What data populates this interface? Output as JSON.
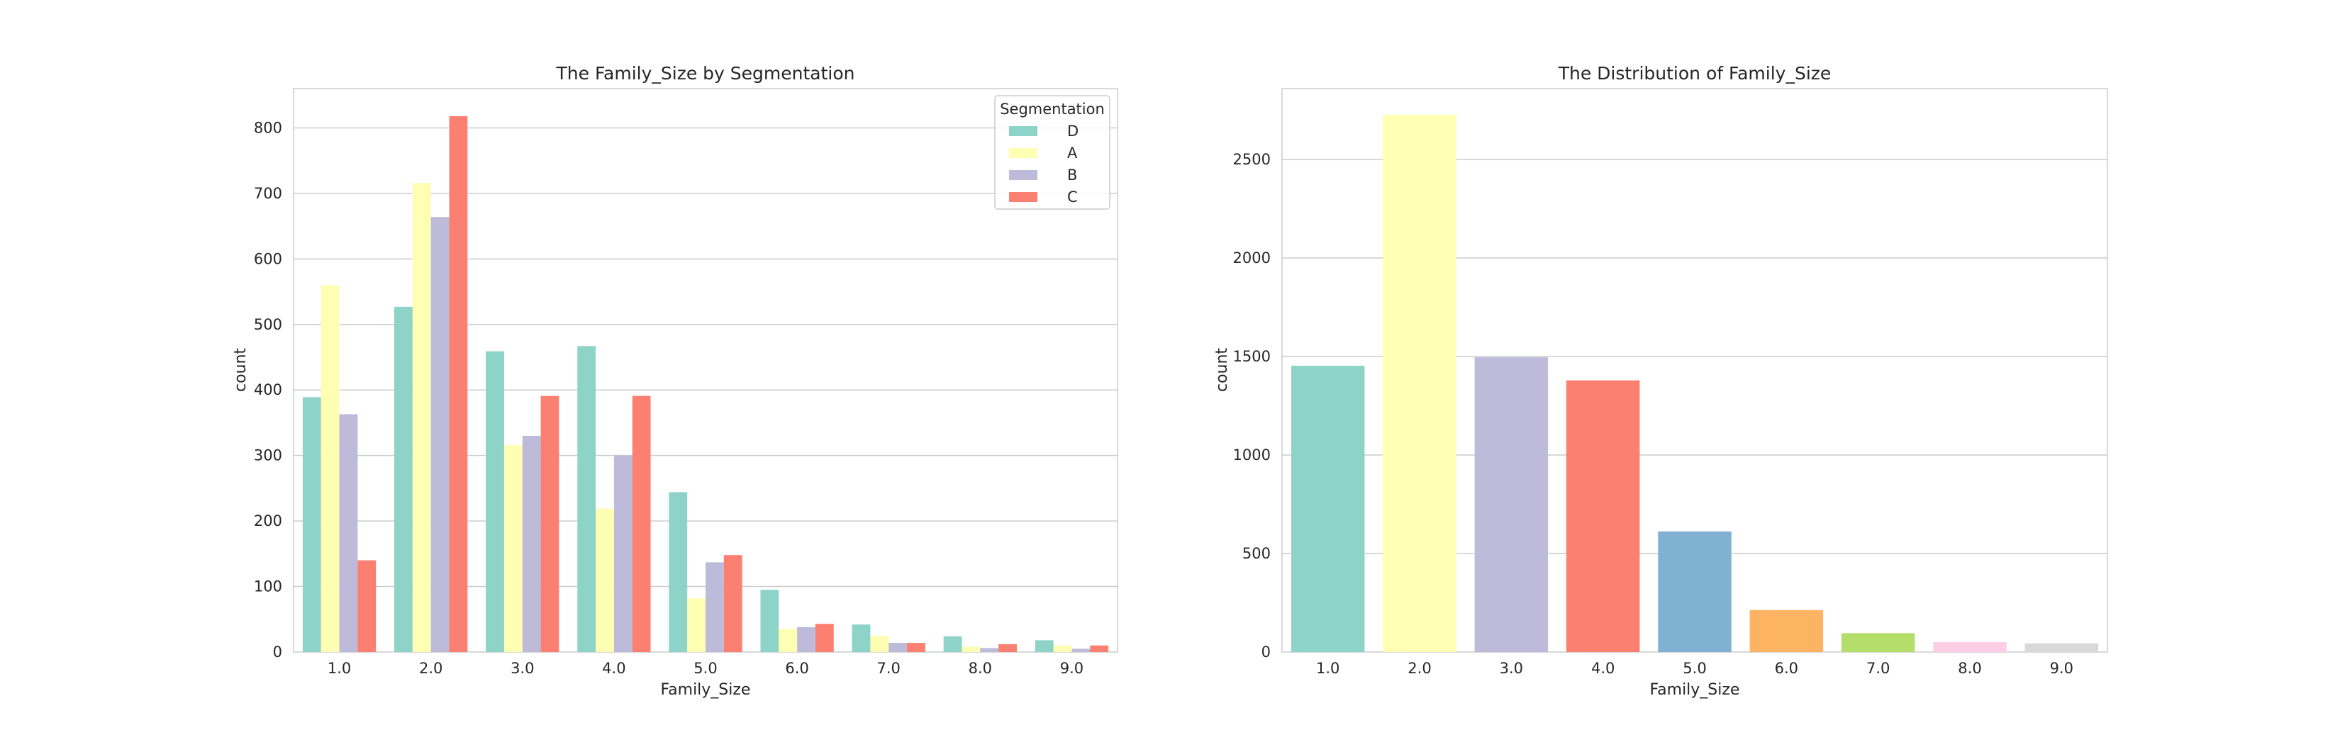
{
  "chart_data": [
    {
      "type": "bar",
      "title": "The Family_Size by Segmentation",
      "xlabel": "Family_Size",
      "ylabel": "count",
      "categories": [
        "1.0",
        "2.0",
        "3.0",
        "4.0",
        "5.0",
        "6.0",
        "7.0",
        "8.0",
        "9.0"
      ],
      "ylim": [
        0,
        860
      ],
      "yticks": [
        0,
        100,
        200,
        300,
        400,
        500,
        600,
        700,
        800
      ],
      "grid": true,
      "legend": {
        "title": "Segmentation",
        "placement": "top-right"
      },
      "series": [
        {
          "name": "D",
          "color": "#8dd3c7",
          "values": [
            389,
            527,
            459,
            467,
            244,
            95,
            42,
            24,
            18
          ]
        },
        {
          "name": "A",
          "color": "#ffffb3",
          "values": [
            560,
            716,
            316,
            219,
            82,
            35,
            25,
            8,
            10
          ]
        },
        {
          "name": "B",
          "color": "#bebada",
          "values": [
            363,
            664,
            330,
            300,
            137,
            38,
            14,
            6,
            5
          ]
        },
        {
          "name": "C",
          "color": "#fb8072",
          "values": [
            140,
            818,
            391,
            391,
            148,
            43,
            14,
            12,
            10
          ]
        }
      ]
    },
    {
      "type": "bar",
      "title": "The Distribution of Family_Size",
      "xlabel": "Family_Size",
      "ylabel": "count",
      "categories": [
        "1.0",
        "2.0",
        "3.0",
        "4.0",
        "5.0",
        "6.0",
        "7.0",
        "8.0",
        "9.0"
      ],
      "ylim": [
        0,
        2860
      ],
      "yticks": [
        0,
        500,
        1000,
        1500,
        2000,
        2500
      ],
      "grid": true,
      "values": [
        1453,
        2727,
        1496,
        1379,
        612,
        213,
        96,
        50,
        44
      ],
      "colors": [
        "#8dd3c7",
        "#ffffb3",
        "#bebada",
        "#fb8072",
        "#80b1d3",
        "#fdb462",
        "#b3de69",
        "#fccde5",
        "#d9d9d9"
      ]
    }
  ]
}
